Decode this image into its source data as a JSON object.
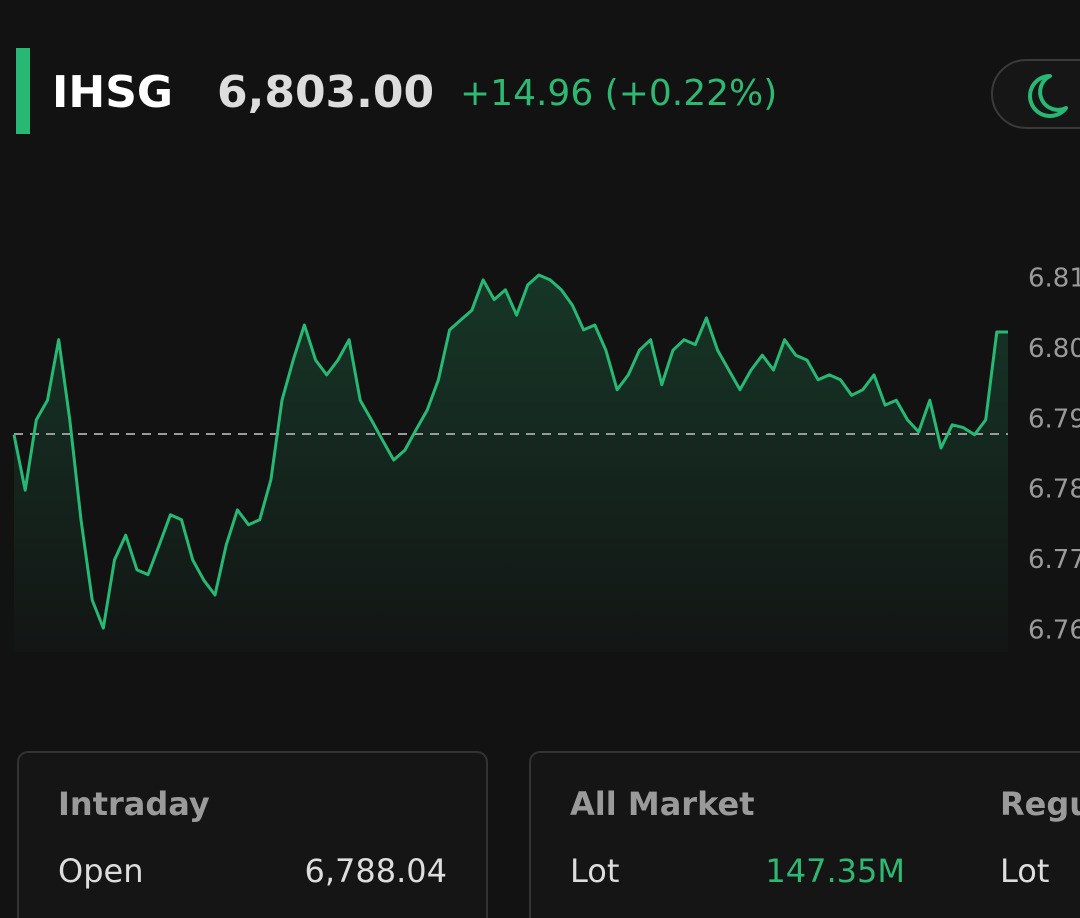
{
  "header": {
    "symbol": "IHSG",
    "price": "6,803.00",
    "change": "+14.96 (+0.22%)"
  },
  "chart_data": {
    "type": "line",
    "color": "#27b874",
    "baseline": 6.788,
    "ylim": [
      6.757,
      6.817
    ],
    "yticks": [
      6.81,
      {
        "value": 6.8,
        "label": "6.80"
      },
      6.79,
      6.78,
      6.77,
      6.76
    ],
    "values": [
      6.7879,
      6.78,
      6.79,
      6.7928,
      6.8014,
      6.79,
      6.7758,
      6.7644,
      6.7604,
      6.7701,
      6.7736,
      6.7687,
      6.768,
      6.7722,
      6.7765,
      6.7758,
      6.7701,
      6.7672,
      6.7651,
      6.7722,
      6.7772,
      6.7751,
      6.7758,
      6.7815,
      6.7928,
      6.7985,
      6.8035,
      6.7985,
      6.7964,
      6.7985,
      6.8014,
      6.7928,
      6.79,
      6.7871,
      6.7843,
      6.7857,
      6.7886,
      6.7914,
      6.7957,
      6.8028,
      6.8042,
      6.8056,
      6.8099,
      6.8071,
      6.8085,
      6.8049,
      6.8092,
      6.8106,
      6.8099,
      6.8085,
      6.8063,
      6.8028,
      6.8035,
      6.7999,
      6.7943,
      6.7964,
      6.7999,
      6.8014,
      6.795,
      6.7999,
      6.8014,
      6.8007,
      6.8045,
      6.7999,
      6.7971,
      6.7943,
      6.7971,
      6.7992,
      6.7971,
      6.8014,
      6.7992,
      6.7985,
      6.7957,
      6.7964,
      6.7957,
      6.7935,
      6.7943,
      6.7964,
      6.7921,
      6.7928,
      6.79,
      6.7883,
      6.7928,
      6.786,
      6.7893,
      6.7889,
      6.7879,
      6.79,
      6.8025,
      6.8025
    ]
  },
  "cards": [
    {
      "title": "Intraday",
      "label": "Open",
      "value": "6,788.04"
    },
    {
      "title": "All Market",
      "label": "Lot",
      "value": "147.35M"
    },
    {
      "title": "Regu",
      "label": "Lot"
    }
  ]
}
